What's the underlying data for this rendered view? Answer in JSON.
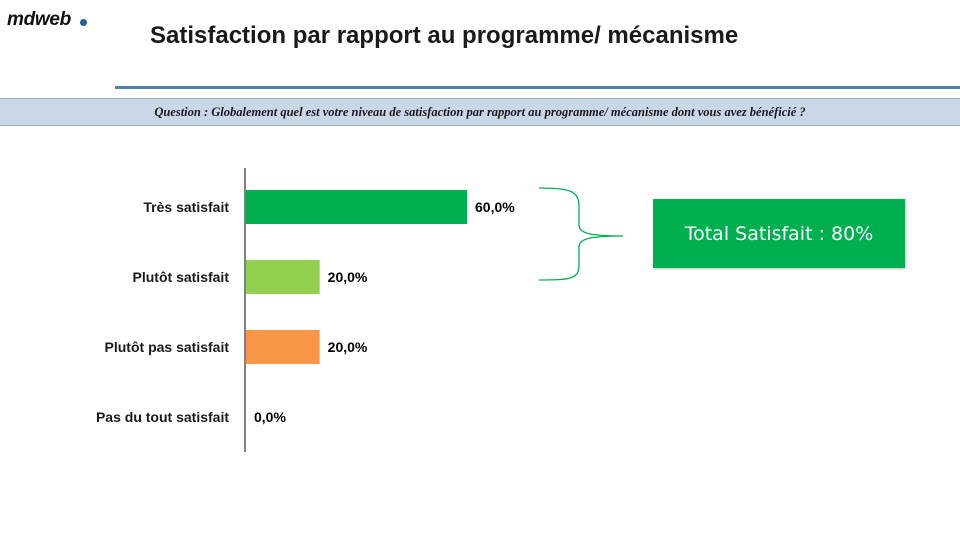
{
  "logo": {
    "text": "mdweb",
    "dot_color": "#1f5fa8"
  },
  "title": "Satisfaction par rapport au programme/ mécanisme",
  "title_rule_color": "#4f7fb5",
  "question": "Question : Globalement quel est votre niveau de satisfaction par rapport au programme/ mécanisme dont vous avez bénéficié ?",
  "summary": {
    "text": "Total Satisfait : 80%",
    "color": "#00b050"
  },
  "chart_data": {
    "type": "bar",
    "orientation": "horizontal",
    "categories": [
      "Très satisfait",
      "Plutôt satisfait",
      "Plutôt pas satisfait",
      "Pas du tout satisfait"
    ],
    "values": [
      60.0,
      20.0,
      20.0,
      0.0
    ],
    "data_labels": [
      "60,0%",
      "20,0%",
      "20,0%",
      "0,0%"
    ],
    "colors": [
      "#00b050",
      "#92d050",
      "#f79646",
      "#c00000"
    ],
    "xlim": [
      0,
      100
    ],
    "grid": false,
    "legend": "none"
  }
}
